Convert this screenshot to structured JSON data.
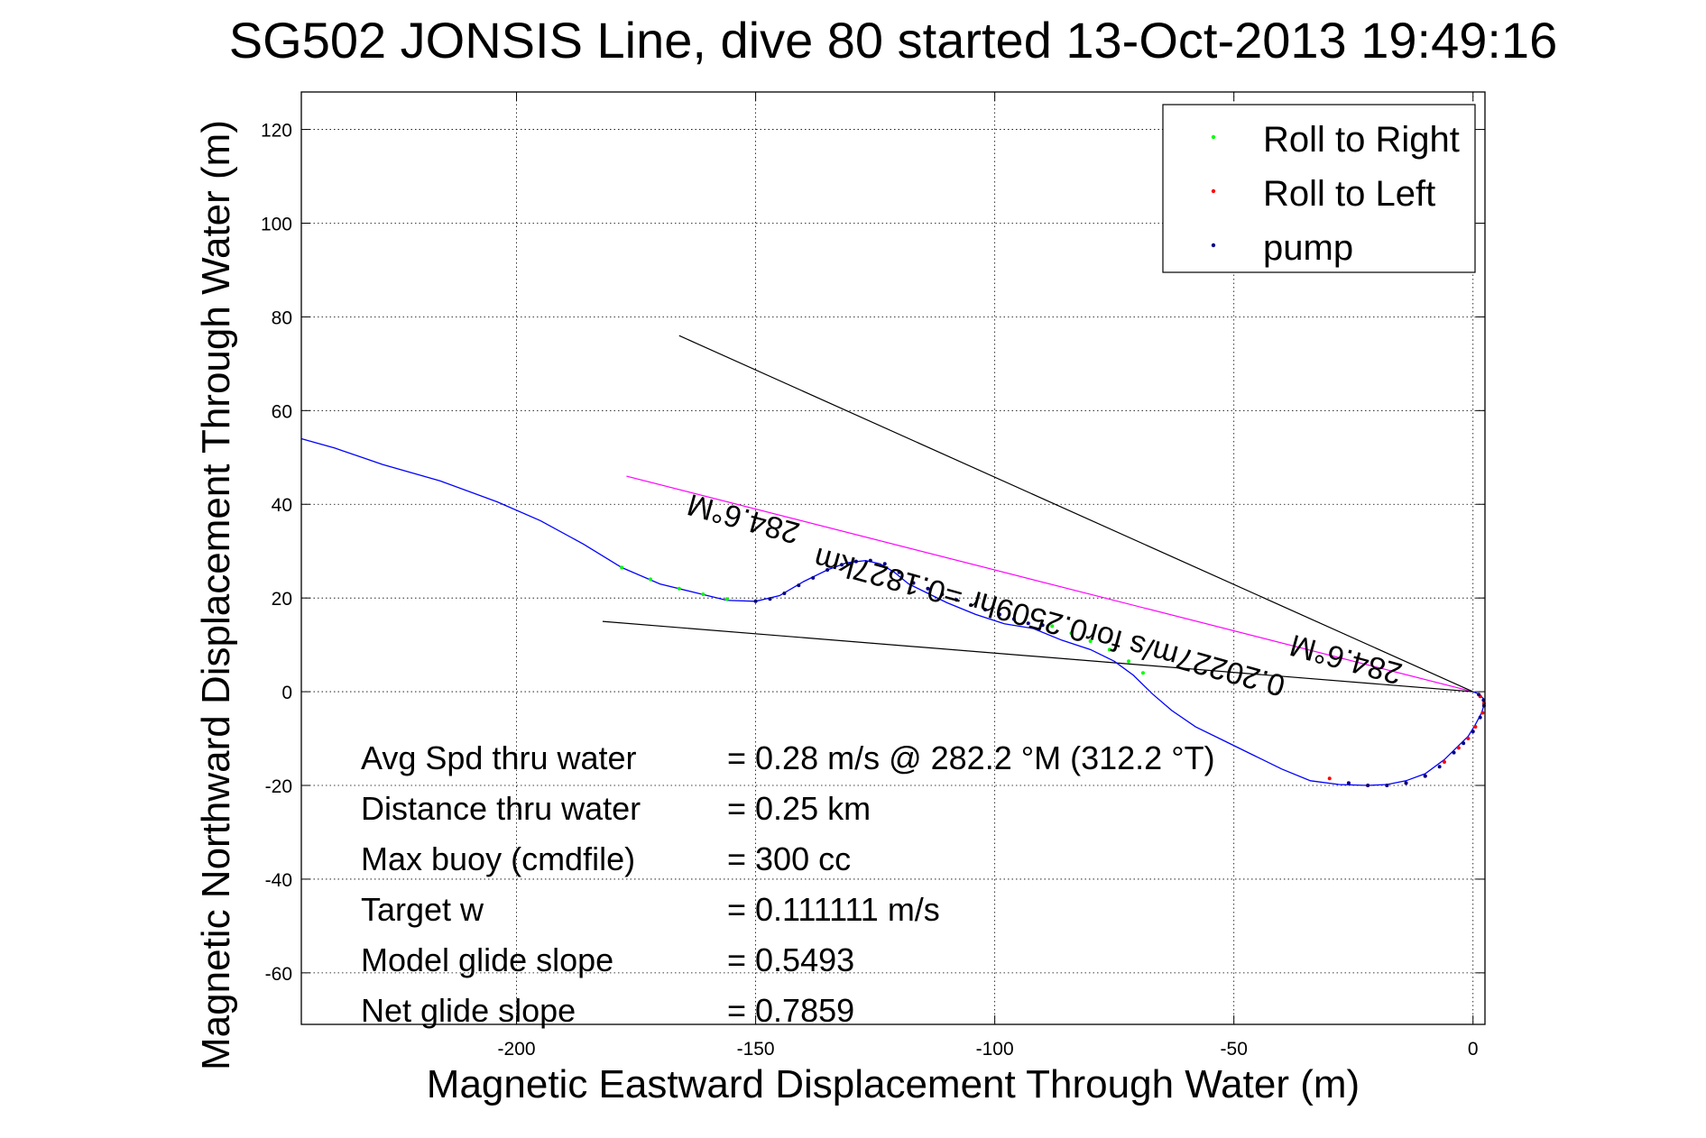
{
  "chart_data": {
    "type": "line",
    "title": "SG502 JONSIS Line, dive 80 started 13-Oct-2013 19:49:16",
    "xlabel": "Magnetic Eastward Displacement Through Water (m)",
    "ylabel": "Magnetic Northward Displacement Through Water (m)",
    "xlim": [
      -245,
      2.5
    ],
    "ylim": [
      -71,
      128
    ],
    "xticks": [
      -200,
      -150,
      -100,
      -50,
      0
    ],
    "yticks": [
      -60,
      -40,
      -20,
      0,
      20,
      40,
      60,
      80,
      100,
      120
    ],
    "grid": true,
    "legend_position": "top-right",
    "legend": [
      {
        "label": "Roll to Right",
        "color": "#00ff00"
      },
      {
        "label": "Roll to Left",
        "color": "#ff0000"
      },
      {
        "label": "pump",
        "color": "#000080"
      }
    ],
    "series": [
      {
        "color": "#0000ff",
        "x": [
          -245,
          -238,
          -228,
          -216,
          -204,
          -195,
          -186,
          -178,
          -170,
          -162,
          -156,
          -150,
          -145,
          -140,
          -135,
          -131,
          -127,
          -124,
          -121,
          -118,
          -115,
          -110,
          -104,
          -98,
          -92,
          -86,
          -80,
          -75,
          -71,
          -67,
          -63,
          -58,
          -52,
          -46,
          -40,
          -34,
          -28,
          -22,
          -18,
          -14,
          -10,
          -6,
          -3,
          -1,
          0.5,
          1.8,
          2.4,
          2.2,
          1.2,
          0
        ],
        "y": [
          54,
          52,
          48.5,
          45,
          40.5,
          36.5,
          31.5,
          26.5,
          23,
          21,
          19.5,
          19.3,
          20.5,
          23.5,
          26,
          27.5,
          28,
          27.3,
          25.5,
          23,
          21.5,
          19,
          16.5,
          14.5,
          13.5,
          11,
          9,
          6.5,
          3.5,
          -0.5,
          -4,
          -7.5,
          -10.5,
          -13.5,
          -16.5,
          -19,
          -19.8,
          -20,
          -19.8,
          -19,
          -17.5,
          -14.5,
          -11.5,
          -9.5,
          -7,
          -4.5,
          -2.5,
          -1.5,
          -0.5,
          0
        ]
      },
      {
        "name": "Roll to Right",
        "color": "#00ff00",
        "x": [
          -178,
          -172,
          -166,
          -161,
          -156,
          -88,
          -84,
          -80,
          -76,
          -72,
          -69
        ],
        "y": [
          26.5,
          24,
          22,
          20.8,
          19.8,
          14,
          12.5,
          10.8,
          9,
          6.5,
          4
        ]
      },
      {
        "name": "Roll to Left",
        "color": "#ff0000",
        "x": [
          -30,
          -26,
          -22,
          -18,
          -14,
          -10,
          -6,
          -3,
          -1,
          0.5,
          2,
          2.3,
          1.5
        ],
        "y": [
          -18.5,
          -19.5,
          -20,
          -20,
          -19.5,
          -18,
          -15,
          -12,
          -10,
          -7.5,
          -4.5,
          -2.5,
          -1
        ]
      },
      {
        "name": "pump",
        "color": "#000080",
        "x": [
          -150,
          -147,
          -144,
          -141,
          -138,
          -135,
          -132,
          -129,
          -126,
          -123,
          -120,
          -117,
          -114,
          -111,
          -108,
          -105,
          -102,
          -99,
          -96,
          -93,
          -90,
          -26,
          -22,
          -18,
          -14,
          -10,
          -7,
          -4,
          -2,
          0,
          1.5,
          2.3,
          2.2,
          1.2
        ],
        "y": [
          19.3,
          19.8,
          21,
          22.7,
          24.3,
          26,
          27.1,
          27.8,
          28,
          27.3,
          25.5,
          23.2,
          22,
          20.8,
          19.6,
          18.5,
          17.5,
          16.5,
          15.5,
          14.6,
          14.2,
          -19.5,
          -20,
          -20,
          -19.5,
          -18,
          -16,
          -13,
          -11,
          -8.5,
          -5.5,
          -3,
          -1.8,
          -0.6
        ]
      }
    ],
    "reference_lines": [
      {
        "color": "#ff00ff",
        "x": [
          -177,
          0
        ],
        "y": [
          46,
          0
        ]
      },
      {
        "color": "#000000",
        "x": [
          -166,
          0
        ],
        "y": [
          76,
          0
        ]
      },
      {
        "color": "#000000",
        "x": [
          -182,
          0
        ],
        "y": [
          15,
          0
        ]
      }
    ],
    "annotations": [
      {
        "text": "284.6°M",
        "x": -152,
        "y": 39,
        "angle": 195.4
      },
      {
        "text": "0.20227m/s for0.2509hr =0.1827km",
        "x": -88,
        "y": 17,
        "angle": 195.4
      },
      {
        "text": "284.6°M",
        "x": -26,
        "y": 9,
        "angle": 195.4
      }
    ],
    "stats": [
      {
        "label": "Avg Spd thru water",
        "value": "=  0.28 m/s @ 282.2 °M (312.2 °T)"
      },
      {
        "label": "Distance thru water",
        "value": "=  0.25 km"
      },
      {
        "label": "Max buoy (cmdfile)",
        "value": "= 300 cc"
      },
      {
        "label": "Target w",
        "value": "= 0.111111 m/s"
      },
      {
        "label": "Model glide slope",
        "value": "= 0.5493"
      },
      {
        "label": "Net glide slope",
        "value": "= 0.7859"
      }
    ]
  }
}
